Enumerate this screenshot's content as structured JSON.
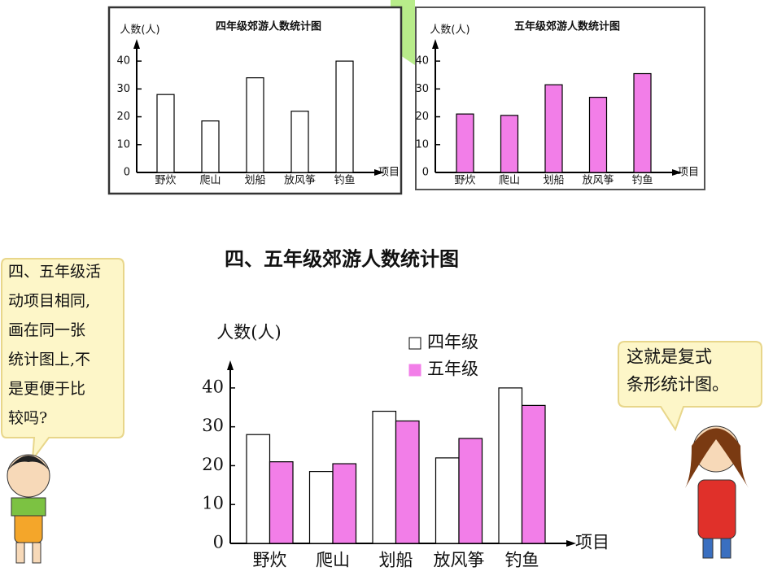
{
  "chart_data": [
    {
      "type": "bar",
      "title": "四年级郊游人数统计图",
      "y_label": "人数(人)",
      "x_label": "项目",
      "categories": [
        "野炊",
        "爬山",
        "划船",
        "放风筝",
        "钓鱼"
      ],
      "values": [
        28,
        18.5,
        34,
        22,
        40
      ],
      "color": "#ffffff",
      "ylim": [
        0,
        45
      ],
      "yticks": [
        0,
        10,
        20,
        30,
        40
      ]
    },
    {
      "type": "bar",
      "title": "五年级郊游人数统计图",
      "y_label": "人数(人)",
      "x_label": "项目",
      "categories": [
        "野炊",
        "爬山",
        "划船",
        "放风筝",
        "钓鱼"
      ],
      "values": [
        21,
        20.5,
        31.5,
        27,
        35.5
      ],
      "color": "#f27ee8",
      "ylim": [
        0,
        45
      ],
      "yticks": [
        0,
        10,
        20,
        30,
        40
      ]
    },
    {
      "type": "bar",
      "title": "四、五年级郊游人数统计图",
      "y_label": "人数(人)",
      "x_label": "项目",
      "categories": [
        "野炊",
        "爬山",
        "划船",
        "放风筝",
        "钓鱼"
      ],
      "series": [
        {
          "name": "四年级",
          "color": "#ffffff",
          "values": [
            28,
            18.5,
            34,
            22,
            40
          ]
        },
        {
          "name": "五年级",
          "color": "#f27ee8",
          "values": [
            21,
            20.5,
            31.5,
            27,
            35.5
          ]
        }
      ],
      "ylim": [
        0,
        45
      ],
      "yticks": [
        0,
        10,
        20,
        30,
        40
      ]
    }
  ],
  "speech_bubbles": [
    {
      "lines": [
        "四、五年级活",
        "动项目相同,",
        "画在同一张",
        "统计图上,不",
        "是更便于比",
        "较吗?"
      ]
    },
    {
      "lines": [
        "这就是复式",
        "条形统计图。"
      ]
    }
  ]
}
